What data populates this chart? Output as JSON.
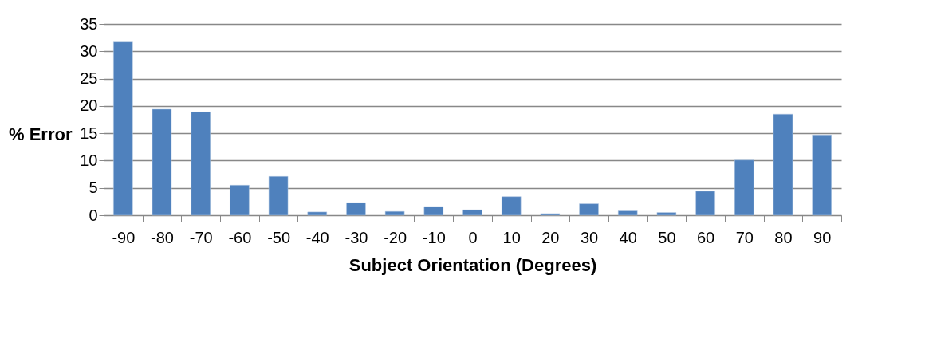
{
  "chart_data": {
    "type": "bar",
    "xlabel": "Subject Orientation (Degrees)",
    "ylabel": "% Error",
    "categories": [
      "-90",
      "-80",
      "-70",
      "-60",
      "-50",
      "-40",
      "-30",
      "-20",
      "-10",
      "0",
      "10",
      "20",
      "30",
      "40",
      "50",
      "60",
      "70",
      "80",
      "90"
    ],
    "values": [
      31.7,
      19.4,
      18.9,
      5.5,
      7.1,
      0.6,
      2.3,
      0.7,
      1.6,
      1.0,
      3.4,
      0.3,
      2.1,
      0.8,
      0.5,
      4.4,
      10.1,
      18.5,
      14.7
    ],
    "color": "#4f81bd",
    "ylim": [
      0,
      35
    ],
    "yticks": [
      0,
      5,
      10,
      15,
      20,
      25,
      30,
      35
    ],
    "grid": "y"
  }
}
